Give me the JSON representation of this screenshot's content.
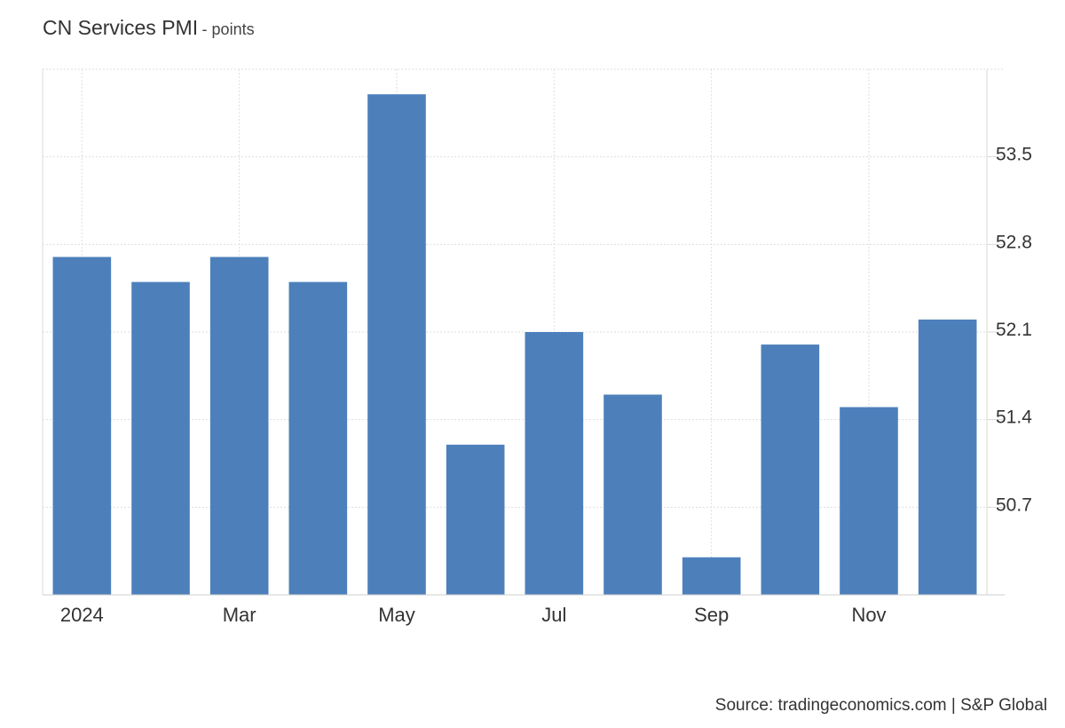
{
  "chart_data": {
    "type": "bar",
    "title": "CN Services PMI",
    "subtitle": "- points",
    "categories": [
      "Jan 2024",
      "Feb 2024",
      "Mar 2024",
      "Apr 2024",
      "May 2024",
      "Jun 2024",
      "Jul 2024",
      "Aug 2024",
      "Sep 2024",
      "Oct 2024",
      "Nov 2024",
      "Dec 2024"
    ],
    "series": [
      {
        "values": [
          52.7,
          52.5,
          52.7,
          52.5,
          54.0,
          51.2,
          52.1,
          51.6,
          50.3,
          52.0,
          51.5,
          52.2
        ]
      }
    ],
    "x_tick_labels": [
      {
        "index": 0,
        "label": "2024"
      },
      {
        "index": 2,
        "label": "Mar"
      },
      {
        "index": 4,
        "label": "May"
      },
      {
        "index": 6,
        "label": "Jul"
      },
      {
        "index": 8,
        "label": "Sep"
      },
      {
        "index": 10,
        "label": "Nov"
      }
    ],
    "y_ticks": [
      "50.7",
      "51.4",
      "52.1",
      "52.8",
      "53.5"
    ],
    "ylim": [
      50.0,
      54.2
    ],
    "y_axis_side": "right",
    "grid": true,
    "bar_color": "#4d80bb"
  },
  "source": "Source: tradingeconomics.com | S&P Global"
}
